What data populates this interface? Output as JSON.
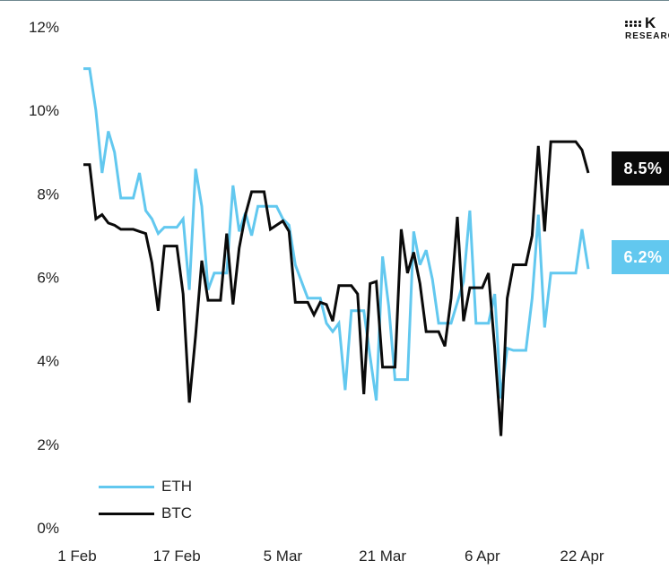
{
  "brand": {
    "mark": "K",
    "sub": "RESEARCH"
  },
  "chart_data": {
    "type": "line",
    "ylim": [
      0,
      12
    ],
    "y_ticks": [
      {
        "value": 0,
        "label": "0%"
      },
      {
        "value": 2,
        "label": "2%"
      },
      {
        "value": 4,
        "label": "4%"
      },
      {
        "value": 6,
        "label": "6%"
      },
      {
        "value": 8,
        "label": "8%"
      },
      {
        "value": 10,
        "label": "10%"
      },
      {
        "value": 12,
        "label": "12%"
      }
    ],
    "x_ticks": [
      {
        "date": "2024-02-01",
        "label": "1 Feb"
      },
      {
        "date": "2024-02-17",
        "label": "17 Feb"
      },
      {
        "date": "2024-03-05",
        "label": "5 Mar"
      },
      {
        "date": "2024-03-21",
        "label": "21 Mar"
      },
      {
        "date": "2024-04-06",
        "label": "6 Apr"
      },
      {
        "date": "2024-04-22",
        "label": "22 Apr"
      }
    ],
    "xlim": [
      "2024-02-01",
      "2024-04-22"
    ],
    "grid": false,
    "legend": "bottom-left",
    "series": [
      {
        "name": "ETH",
        "color": "#62c8ef",
        "points": [
          [
            "2024-02-02",
            11.0
          ],
          [
            "2024-02-03",
            11.0
          ],
          [
            "2024-02-04",
            10.0
          ],
          [
            "2024-02-05",
            8.5
          ],
          [
            "2024-02-06",
            9.5
          ],
          [
            "2024-02-07",
            9.0
          ],
          [
            "2024-02-08",
            7.9
          ],
          [
            "2024-02-10",
            7.9
          ],
          [
            "2024-02-11",
            8.5
          ],
          [
            "2024-02-12",
            7.6
          ],
          [
            "2024-02-13",
            7.4
          ],
          [
            "2024-02-14",
            7.05
          ],
          [
            "2024-02-15",
            7.2
          ],
          [
            "2024-02-17",
            7.2
          ],
          [
            "2024-02-18",
            7.4
          ],
          [
            "2024-02-19",
            5.7
          ],
          [
            "2024-02-20",
            8.6
          ],
          [
            "2024-02-21",
            7.7
          ],
          [
            "2024-02-22",
            5.7
          ],
          [
            "2024-02-23",
            6.1
          ],
          [
            "2024-02-25",
            6.1
          ],
          [
            "2024-02-26",
            8.2
          ],
          [
            "2024-02-27",
            7.1
          ],
          [
            "2024-02-28",
            7.55
          ],
          [
            "2024-02-29",
            7.0
          ],
          [
            "2024-03-01",
            7.7
          ],
          [
            "2024-03-04",
            7.7
          ],
          [
            "2024-03-05",
            7.4
          ],
          [
            "2024-03-06",
            7.25
          ],
          [
            "2024-03-07",
            6.3
          ],
          [
            "2024-03-08",
            5.9
          ],
          [
            "2024-03-09",
            5.5
          ],
          [
            "2024-03-11",
            5.5
          ],
          [
            "2024-03-12",
            4.9
          ],
          [
            "2024-03-13",
            4.7
          ],
          [
            "2024-03-14",
            4.9
          ],
          [
            "2024-03-15",
            3.3
          ],
          [
            "2024-03-16",
            5.2
          ],
          [
            "2024-03-18",
            5.2
          ],
          [
            "2024-03-19",
            4.1
          ],
          [
            "2024-03-20",
            3.05
          ],
          [
            "2024-03-21",
            6.5
          ],
          [
            "2024-03-22",
            5.3
          ],
          [
            "2024-03-23",
            3.55
          ],
          [
            "2024-03-25",
            3.55
          ],
          [
            "2024-03-26",
            7.1
          ],
          [
            "2024-03-27",
            6.3
          ],
          [
            "2024-03-28",
            6.65
          ],
          [
            "2024-03-29",
            5.95
          ],
          [
            "2024-03-30",
            4.9
          ],
          [
            "2024-04-01",
            4.9
          ],
          [
            "2024-04-02",
            5.4
          ],
          [
            "2024-04-03",
            5.9
          ],
          [
            "2024-04-04",
            7.6
          ],
          [
            "2024-04-05",
            4.9
          ],
          [
            "2024-04-07",
            4.9
          ],
          [
            "2024-04-08",
            5.6
          ],
          [
            "2024-04-09",
            3.1
          ],
          [
            "2024-04-10",
            4.3
          ],
          [
            "2024-04-11",
            4.25
          ],
          [
            "2024-04-13",
            4.25
          ],
          [
            "2024-04-14",
            5.5
          ],
          [
            "2024-04-15",
            7.5
          ],
          [
            "2024-04-16",
            4.8
          ],
          [
            "2024-04-17",
            6.1
          ],
          [
            "2024-04-21",
            6.1
          ],
          [
            "2024-04-22",
            7.15
          ],
          [
            "2024-04-23",
            6.2
          ]
        ]
      },
      {
        "name": "BTC",
        "color": "#0a0a0a",
        "points": [
          [
            "2024-02-02",
            8.7
          ],
          [
            "2024-02-03",
            8.7
          ],
          [
            "2024-02-04",
            7.4
          ],
          [
            "2024-02-05",
            7.5
          ],
          [
            "2024-02-06",
            7.3
          ],
          [
            "2024-02-07",
            7.25
          ],
          [
            "2024-02-08",
            7.15
          ],
          [
            "2024-02-10",
            7.15
          ],
          [
            "2024-02-11",
            7.1
          ],
          [
            "2024-02-12",
            7.05
          ],
          [
            "2024-02-13",
            6.35
          ],
          [
            "2024-02-14",
            5.2
          ],
          [
            "2024-02-15",
            6.75
          ],
          [
            "2024-02-17",
            6.75
          ],
          [
            "2024-02-18",
            5.6
          ],
          [
            "2024-02-19",
            3.0
          ],
          [
            "2024-02-20",
            4.6
          ],
          [
            "2024-02-21",
            6.4
          ],
          [
            "2024-02-22",
            5.45
          ],
          [
            "2024-02-24",
            5.45
          ],
          [
            "2024-02-25",
            7.05
          ],
          [
            "2024-02-26",
            5.35
          ],
          [
            "2024-02-27",
            6.7
          ],
          [
            "2024-02-28",
            7.5
          ],
          [
            "2024-02-29",
            8.05
          ],
          [
            "2024-03-02",
            8.05
          ],
          [
            "2024-03-03",
            7.15
          ],
          [
            "2024-03-04",
            7.25
          ],
          [
            "2024-03-05",
            7.35
          ],
          [
            "2024-03-06",
            7.1
          ],
          [
            "2024-03-07",
            5.4
          ],
          [
            "2024-03-09",
            5.4
          ],
          [
            "2024-03-10",
            5.1
          ],
          [
            "2024-03-11",
            5.4
          ],
          [
            "2024-03-12",
            5.35
          ],
          [
            "2024-03-13",
            4.95
          ],
          [
            "2024-03-14",
            5.8
          ],
          [
            "2024-03-16",
            5.8
          ],
          [
            "2024-03-17",
            5.6
          ],
          [
            "2024-03-18",
            3.2
          ],
          [
            "2024-03-19",
            5.85
          ],
          [
            "2024-03-20",
            5.9
          ],
          [
            "2024-03-21",
            3.85
          ],
          [
            "2024-03-23",
            3.85
          ],
          [
            "2024-03-24",
            7.15
          ],
          [
            "2024-03-25",
            6.1
          ],
          [
            "2024-03-26",
            6.6
          ],
          [
            "2024-03-27",
            5.85
          ],
          [
            "2024-03-28",
            4.7
          ],
          [
            "2024-03-30",
            4.7
          ],
          [
            "2024-03-31",
            4.35
          ],
          [
            "2024-04-01",
            5.5
          ],
          [
            "2024-04-02",
            7.45
          ],
          [
            "2024-04-03",
            4.95
          ],
          [
            "2024-04-04",
            5.75
          ],
          [
            "2024-04-06",
            5.75
          ],
          [
            "2024-04-07",
            6.1
          ],
          [
            "2024-04-08",
            4.3
          ],
          [
            "2024-04-09",
            2.2
          ],
          [
            "2024-04-10",
            5.5
          ],
          [
            "2024-04-11",
            6.3
          ],
          [
            "2024-04-13",
            6.3
          ],
          [
            "2024-04-14",
            7.0
          ],
          [
            "2024-04-15",
            9.15
          ],
          [
            "2024-04-16",
            7.1
          ],
          [
            "2024-04-17",
            9.25
          ],
          [
            "2024-04-21",
            9.25
          ],
          [
            "2024-04-22",
            9.05
          ],
          [
            "2024-04-23",
            8.5
          ]
        ]
      }
    ],
    "end_labels": [
      {
        "series": "BTC",
        "label": "8.5%"
      },
      {
        "series": "ETH",
        "label": "6.2%"
      }
    ]
  }
}
